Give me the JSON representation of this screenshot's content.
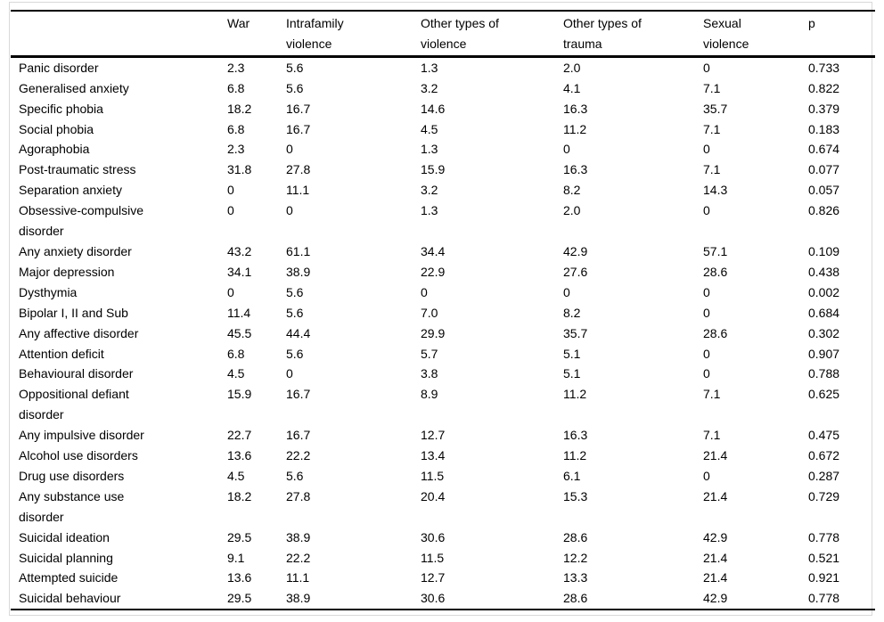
{
  "colors": {
    "background": "#ffffff",
    "text": "#000000",
    "rule": "#000000",
    "frame_border": "#d9d9d9"
  },
  "table": {
    "columns": [
      "",
      "War",
      "Intrafamily\nviolence",
      "Other types of\nviolence",
      "Other types of\ntrauma",
      "Sexual\nviolence",
      "p"
    ],
    "rows": [
      {
        "label": "Panic disorder",
        "values": [
          "2.3",
          "5.6",
          "1.3",
          "2.0",
          "0",
          "0.733"
        ]
      },
      {
        "label": "Generalised anxiety",
        "values": [
          "6.8",
          "5.6",
          "3.2",
          "4.1",
          "7.1",
          "0.822"
        ]
      },
      {
        "label": "Specific phobia",
        "values": [
          "18.2",
          "16.7",
          "14.6",
          "16.3",
          "35.7",
          "0.379"
        ]
      },
      {
        "label": "Social phobia",
        "values": [
          "6.8",
          "16.7",
          "4.5",
          "11.2",
          "7.1",
          "0.183"
        ]
      },
      {
        "label": "Agoraphobia",
        "values": [
          "2.3",
          "0",
          "1.3",
          "0",
          "0",
          "0.674"
        ]
      },
      {
        "label": "Post-traumatic stress",
        "values": [
          "31.8",
          "27.8",
          "15.9",
          "16.3",
          "7.1",
          "0.077"
        ]
      },
      {
        "label": "Separation anxiety",
        "values": [
          "0",
          "11.1",
          "3.2",
          "8.2",
          "14.3",
          "0.057"
        ]
      },
      {
        "label": "Obsessive-compulsive\ndisorder",
        "values": [
          "0",
          "0",
          "1.3",
          "2.0",
          "0",
          "0.826"
        ]
      },
      {
        "label": "Any anxiety disorder",
        "values": [
          "43.2",
          "61.1",
          "34.4",
          "42.9",
          "57.1",
          "0.109"
        ]
      },
      {
        "label": "Major depression",
        "values": [
          "34.1",
          "38.9",
          "22.9",
          "27.6",
          "28.6",
          "0.438"
        ]
      },
      {
        "label": "Dysthymia",
        "values": [
          "0",
          "5.6",
          "0",
          "0",
          "0",
          "0.002"
        ]
      },
      {
        "label": "Bipolar I, II and Sub",
        "values": [
          "11.4",
          "5.6",
          "7.0",
          "8.2",
          "0",
          "0.684"
        ]
      },
      {
        "label": "Any affective disorder",
        "values": [
          "45.5",
          "44.4",
          "29.9",
          "35.7",
          "28.6",
          "0.302"
        ]
      },
      {
        "label": "Attention deficit",
        "values": [
          "6.8",
          "5.6",
          "5.7",
          "5.1",
          "0",
          "0.907"
        ]
      },
      {
        "label": "Behavioural disorder",
        "values": [
          "4.5",
          "0",
          "3.8",
          "5.1",
          "0",
          "0.788"
        ]
      },
      {
        "label": "Oppositional defiant\ndisorder",
        "values": [
          "15.9",
          "16.7",
          "8.9",
          "11.2",
          "7.1",
          "0.625"
        ]
      },
      {
        "label": "Any impulsive disorder",
        "values": [
          "22.7",
          "16.7",
          "12.7",
          "16.3",
          "7.1",
          "0.475"
        ]
      },
      {
        "label": "Alcohol use disorders",
        "values": [
          "13.6",
          "22.2",
          "13.4",
          "11.2",
          "21.4",
          "0.672"
        ]
      },
      {
        "label": "Drug use disorders",
        "values": [
          "4.5",
          "5.6",
          "11.5",
          "6.1",
          "0",
          "0.287"
        ]
      },
      {
        "label": "Any substance use\ndisorder",
        "values": [
          "18.2",
          "27.8",
          "20.4",
          "15.3",
          "21.4",
          "0.729"
        ]
      },
      {
        "label": "Suicidal ideation",
        "values": [
          "29.5",
          "38.9",
          "30.6",
          "28.6",
          "42.9",
          "0.778"
        ]
      },
      {
        "label": "Suicidal planning",
        "values": [
          "9.1",
          "22.2",
          "11.5",
          "12.2",
          "21.4",
          "0.521"
        ]
      },
      {
        "label": "Attempted suicide",
        "values": [
          "13.6",
          "11.1",
          "12.7",
          "13.3",
          "21.4",
          "0.921"
        ]
      },
      {
        "label": "Suicidal behaviour",
        "values": [
          "29.5",
          "38.9",
          "30.6",
          "28.6",
          "42.9",
          "0.778"
        ]
      }
    ]
  }
}
